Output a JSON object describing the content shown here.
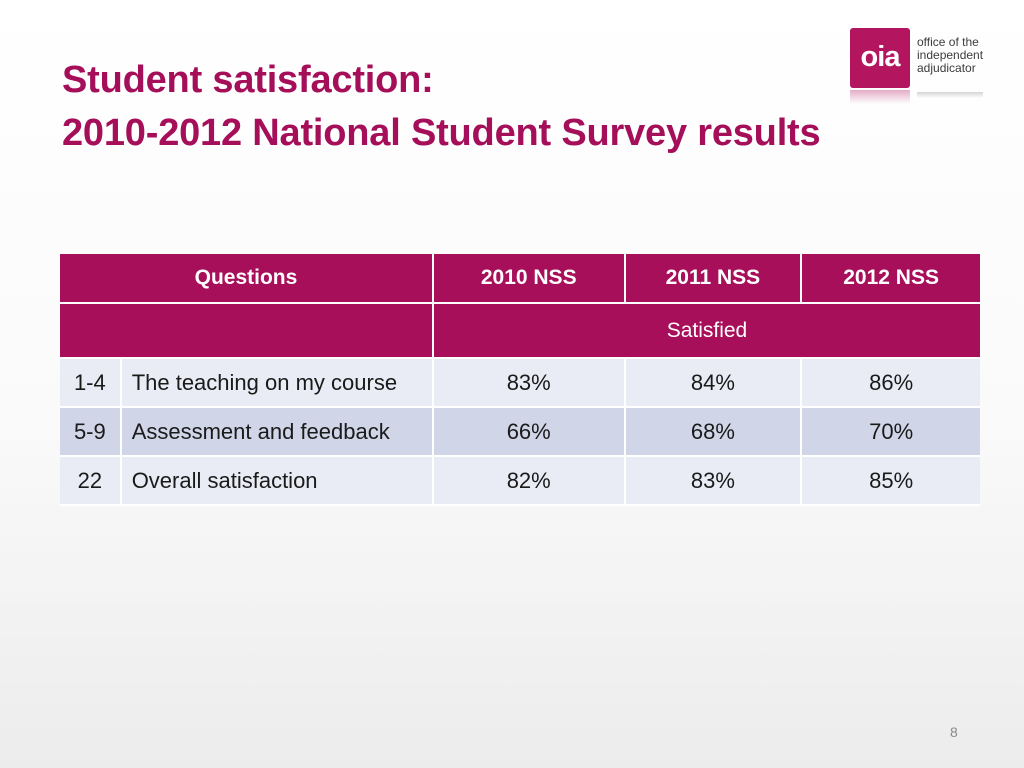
{
  "slide": {
    "title_line1": "Student satisfaction:",
    "title_line2": "2010-2012 National Student Survey results",
    "page_number": "8"
  },
  "logo": {
    "mark": "oia",
    "text_line1": "office of the",
    "text_line2": "independent",
    "text_line3": "adjudicator",
    "brand_color": "#b4155f"
  },
  "table": {
    "headers": {
      "questions": "Questions",
      "year1": "2010 NSS",
      "year2": "2011 NSS",
      "year3": "2012 NSS"
    },
    "subheader": "Satisfied",
    "rows": [
      {
        "num": "1-4",
        "question": "The teaching on my course",
        "v2010": "83%",
        "v2011": "84%",
        "v2012": "86%"
      },
      {
        "num": "5-9",
        "question": "Assessment and feedback",
        "v2010": "66%",
        "v2011": "68%",
        "v2012": "70%"
      },
      {
        "num": "22",
        "question": "Overall satisfaction",
        "v2010": "82%",
        "v2011": "83%",
        "v2012": "85%"
      }
    ],
    "header_color": "#a80f5a",
    "row_color_light": "#e9ecf4",
    "row_color_dark": "#d0d6e8"
  }
}
